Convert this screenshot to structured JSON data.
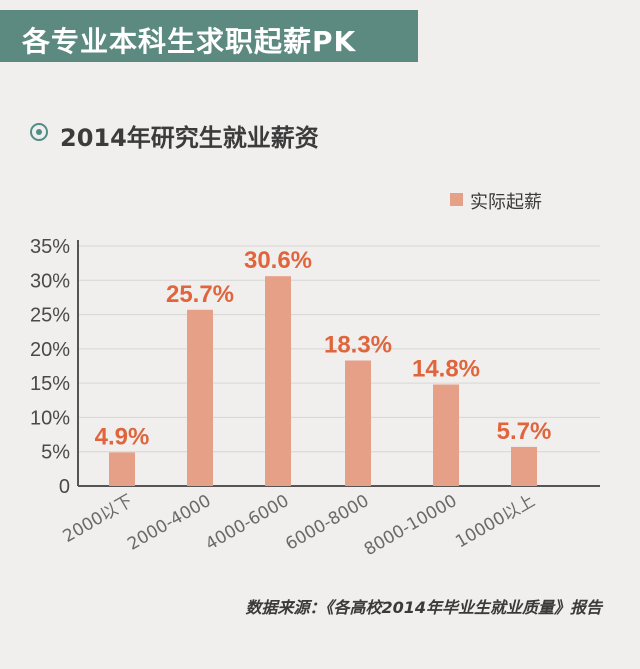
{
  "banner": {
    "title": "各专业本科生求职起薪PK"
  },
  "subtitle": {
    "icon": "circle-dot-icon",
    "text": "2014年研究生就业薪资"
  },
  "legend": {
    "label": "实际起薪"
  },
  "source": "数据来源：《各高校2014年毕业生就业质量》报告",
  "colors": {
    "banner": "#5d8a80",
    "bar": "#e6a087",
    "data_label": "#e0653c",
    "background": "#f0efed"
  },
  "chart_data": {
    "type": "bar",
    "categories": [
      "2000以下",
      "2000-4000",
      "4000-6000",
      "6000-8000",
      "8000-10000",
      "10000以上"
    ],
    "series": [
      {
        "name": "实际起薪",
        "values": [
          4.9,
          25.7,
          30.6,
          18.3,
          14.8,
          5.7
        ]
      }
    ],
    "data_labels": [
      "4.9%",
      "25.7%",
      "30.6%",
      "18.3%",
      "14.8%",
      "5.7%"
    ],
    "y_ticks": [
      "0",
      "5%",
      "10%",
      "15%",
      "20%",
      "25%",
      "30%",
      "35%"
    ],
    "ylim": [
      0,
      35
    ],
    "grid": true,
    "legend": "top-right"
  }
}
